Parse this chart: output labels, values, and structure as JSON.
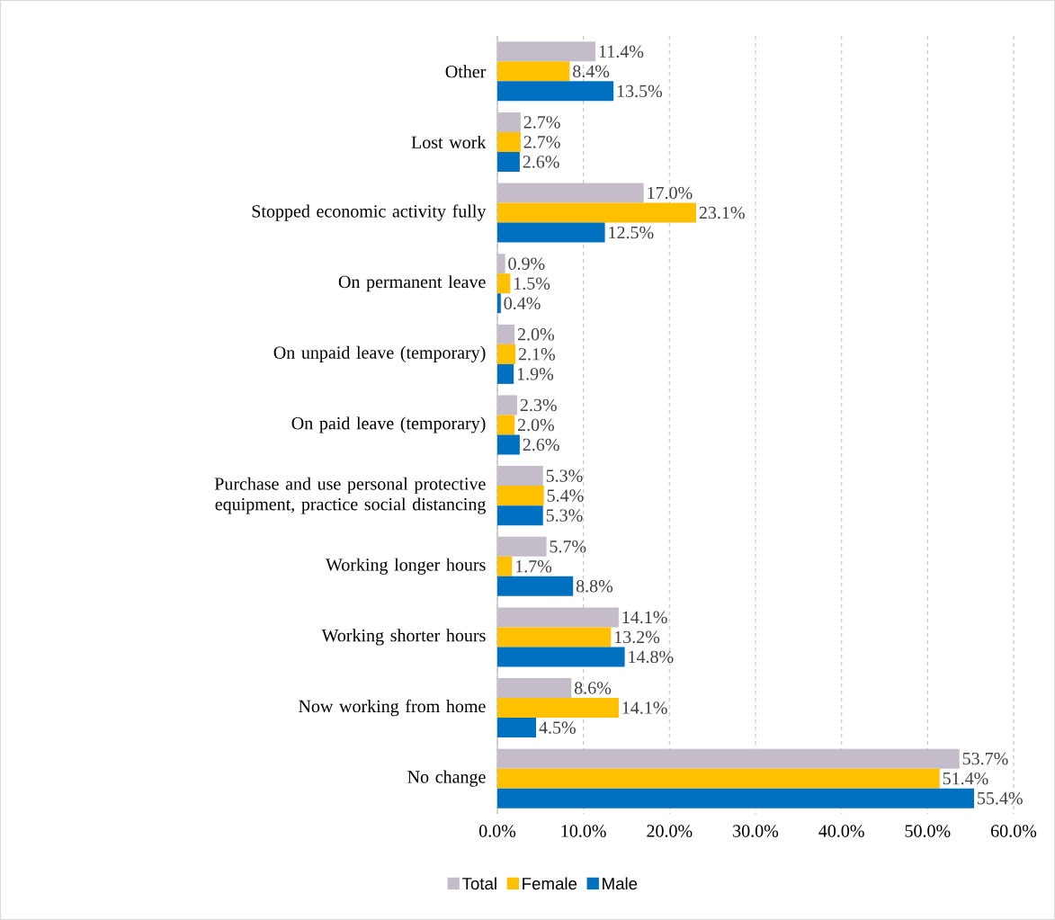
{
  "chart_data": {
    "type": "bar",
    "orientation": "horizontal",
    "categories": [
      "Other",
      "Lost work",
      "Stopped economic activity fully",
      "On permanent leave",
      "On unpaid leave (temporary)",
      "On paid leave (temporary)",
      "Purchase and use personal protective equipment, practice social distancing",
      "Working longer hours",
      "Working shorter hours",
      "Now working from home",
      "No change"
    ],
    "series": [
      {
        "name": "Total",
        "color": "#c4bcc8",
        "values": [
          11.4,
          2.7,
          17.0,
          0.9,
          2.0,
          2.3,
          5.3,
          5.7,
          14.1,
          8.6,
          53.7
        ],
        "value_labels": [
          "11.4%",
          "2.7%",
          "17.0%",
          "0.9%",
          "2.0%",
          "2.3%",
          "5.3%",
          "5.7%",
          "14.1%",
          "8.6%",
          "53.7%"
        ]
      },
      {
        "name": "Female",
        "color": "#ffc000",
        "values": [
          8.4,
          2.7,
          23.1,
          1.5,
          2.1,
          2.0,
          5.4,
          1.7,
          13.2,
          14.1,
          51.4
        ],
        "value_labels": [
          "8.4%",
          "2.7%",
          "23.1%",
          "1.5%",
          "2.1%",
          "2.0%",
          "5.4%",
          "1.7%",
          "13.2%",
          "14.1%",
          "51.4%"
        ]
      },
      {
        "name": "Male",
        "color": "#0070c0",
        "values": [
          13.5,
          2.6,
          12.5,
          0.4,
          1.9,
          2.6,
          5.3,
          8.8,
          14.8,
          4.5,
          55.4
        ],
        "value_labels": [
          "13.5%",
          "2.6%",
          "12.5%",
          "0.4%",
          "1.9%",
          "2.6%",
          "5.3%",
          "8.8%",
          "14.8%",
          "4.5%",
          "55.4%"
        ]
      }
    ],
    "xlim": [
      0,
      60
    ],
    "xticks": [
      {
        "value": 0,
        "label": "0.0%"
      },
      {
        "value": 10,
        "label": "10.0%"
      },
      {
        "value": 20,
        "label": "20.0%"
      },
      {
        "value": 30,
        "label": "30.0%"
      },
      {
        "value": 40,
        "label": "40.0%"
      },
      {
        "value": 50,
        "label": "50.0%"
      },
      {
        "value": 60,
        "label": "60.0%"
      }
    ],
    "grid": "x",
    "legend": "bottom"
  }
}
